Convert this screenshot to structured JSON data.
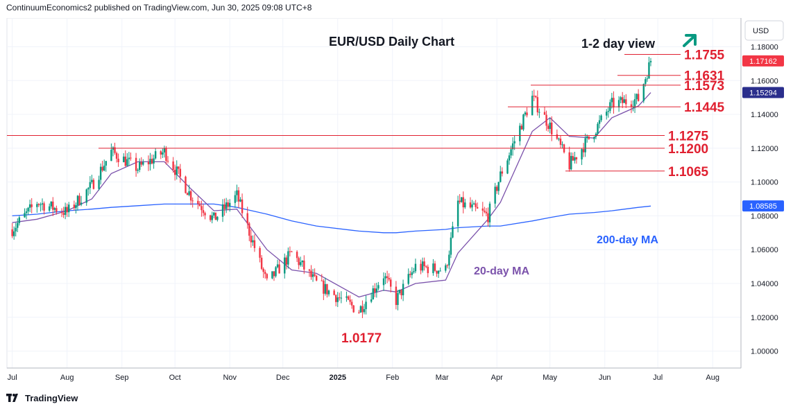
{
  "header": {
    "publisher": "ContinuumEconomics2 published on TradingView.com, Jun 30, 2025 09:08 UTC+8"
  },
  "footer": {
    "brand": "TradingView"
  },
  "chart_data": {
    "type": "candlestick",
    "title": "EUR/USD Daily Chart",
    "view_label": "1-2 day view",
    "view_direction": "up",
    "currency": "USD",
    "ylim": [
      0.99,
      1.197
    ],
    "y_ticks": [
      "1.18000",
      "1.16000",
      "1.14000",
      "1.12000",
      "1.10000",
      "1.08000",
      "1.06000",
      "1.04000",
      "1.02000",
      "1.00000"
    ],
    "x_ticks": [
      "Jul",
      "Aug",
      "Sep",
      "Oct",
      "Nov",
      "Dec",
      "2025",
      "Feb",
      "Mar",
      "Apr",
      "May",
      "Jun",
      "Jul",
      "Aug"
    ],
    "last_price": {
      "label": "1.17162",
      "value": 1.17162,
      "color": "#f23645"
    },
    "ma20_last": {
      "label": "1.15294",
      "value": 1.15294,
      "color": "#2a2e8c"
    },
    "ma200_last": {
      "label": "1.08585",
      "value": 1.08585,
      "color": "#2962ff"
    },
    "levels": [
      {
        "label": "1.1755",
        "value": 1.1755
      },
      {
        "label": "1.1631",
        "value": 1.1631
      },
      {
        "label": "1.1573",
        "value": 1.1573
      },
      {
        "label": "1.1445",
        "value": 1.1445
      },
      {
        "label": "1.1275",
        "value": 1.1275
      },
      {
        "label": "1.1200",
        "value": 1.12
      },
      {
        "label": "1.1065",
        "value": 1.1065
      }
    ],
    "low_annotation": {
      "label": "1.0177",
      "value": 1.0177,
      "date": "2025-01-13"
    },
    "ma20_label": "20-day MA",
    "ma200_label": "200-day MA",
    "series": [
      {
        "name": "EUR/USD",
        "x": [
          "2024-07-01",
          "2024-07-15",
          "2024-08-01",
          "2024-08-15",
          "2024-08-26",
          "2024-09-10",
          "2024-09-25",
          "2024-10-10",
          "2024-10-23",
          "2024-11-05",
          "2024-11-22",
          "2024-12-06",
          "2024-12-20",
          "2025-01-13",
          "2025-01-27",
          "2025-02-03",
          "2025-02-14",
          "2025-03-03",
          "2025-03-10",
          "2025-03-27",
          "2025-04-03",
          "2025-04-21",
          "2025-05-01",
          "2025-05-12",
          "2025-05-26",
          "2025-06-05",
          "2025-06-20",
          "2025-06-27"
        ],
        "values": [
          1.072,
          1.088,
          1.082,
          1.098,
          1.118,
          1.108,
          1.118,
          1.092,
          1.078,
          1.092,
          1.04,
          1.058,
          1.04,
          1.024,
          1.045,
          1.03,
          1.05,
          1.048,
          1.088,
          1.08,
          1.104,
          1.15,
          1.133,
          1.11,
          1.13,
          1.146,
          1.149,
          1.1716
        ]
      },
      {
        "name": "20-day MA",
        "values": [
          1.076,
          1.078,
          1.083,
          1.09,
          1.105,
          1.112,
          1.112,
          1.096,
          1.083,
          1.084,
          1.06,
          1.048,
          1.046,
          1.032,
          1.036,
          1.035,
          1.04,
          1.042,
          1.058,
          1.078,
          1.088,
          1.13,
          1.138,
          1.127,
          1.126,
          1.138,
          1.145,
          1.1529
        ]
      },
      {
        "name": "200-day MA",
        "values": [
          1.08,
          1.081,
          1.083,
          1.084,
          1.085,
          1.086,
          1.087,
          1.087,
          1.087,
          1.085,
          1.081,
          1.077,
          1.074,
          1.071,
          1.07,
          1.07,
          1.071,
          1.072,
          1.073,
          1.074,
          1.074,
          1.077,
          1.079,
          1.081,
          1.082,
          1.083,
          1.085,
          1.0858
        ]
      }
    ],
    "candle_color_up": "#089981",
    "candle_color_down": "#f23645",
    "level_color": "#e02030",
    "ma20_color": "#7b52ab",
    "ma200_color": "#2962ff",
    "arrow_color": "#089981",
    "grid": true
  }
}
